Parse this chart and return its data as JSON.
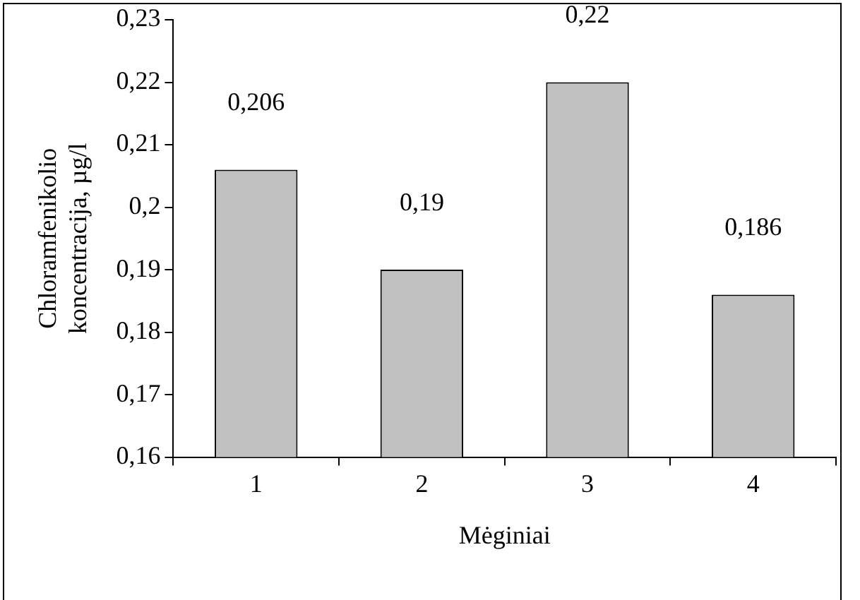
{
  "chart_data": {
    "type": "bar",
    "xlabel": "Mėginiai",
    "ylabel": "Chloramfenikolio koncentracija, µg/l",
    "categories": [
      "1",
      "2",
      "3",
      "4"
    ],
    "values": [
      0.206,
      0.19,
      0.22,
      0.186
    ],
    "value_labels": [
      "0,206",
      "0,19",
      "0,22",
      "0,186"
    ],
    "color": "#c0c0c0",
    "ylim": [
      0.16,
      0.23
    ],
    "yticks": [
      {
        "value": 0.16,
        "label": "0,16"
      },
      {
        "value": 0.17,
        "label": "0,17"
      },
      {
        "value": 0.18,
        "label": "0,18"
      },
      {
        "value": 0.19,
        "label": "0,19"
      },
      {
        "value": 0.2,
        "label": "0,2"
      },
      {
        "value": 0.21,
        "label": "0,21"
      },
      {
        "value": 0.22,
        "label": "0,22"
      },
      {
        "value": 0.23,
        "label": "0,23"
      }
    ],
    "grid": false,
    "legend": false
  }
}
